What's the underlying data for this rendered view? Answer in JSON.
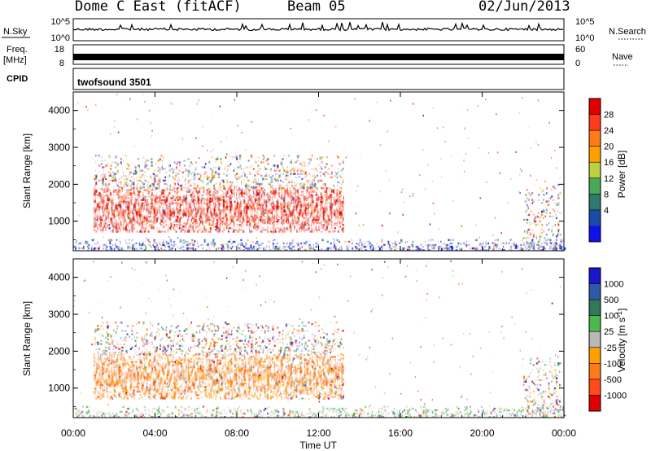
{
  "header": {
    "title": "Dome C East (fitACF)",
    "beam": "Beam 05",
    "date": "02/Jun/2013"
  },
  "top_panels": {
    "nsky": {
      "label": "N.Sky",
      "left_ticks": [
        "10^5",
        "10^0"
      ],
      "right_label": "N.Search",
      "right_ticks": [
        "10^5",
        "10^0"
      ]
    },
    "freq": {
      "label_line1": "Freq.",
      "label_line2": "[MHz]",
      "left_ticks": [
        "18",
        "8"
      ],
      "right_label": "Nave",
      "right_ticks": [
        "60",
        "0"
      ]
    },
    "cpid": {
      "label": "CPID",
      "program": "twofsound 3501"
    }
  },
  "time_axis": {
    "ticks": [
      "00:00",
      "04:00",
      "08:00",
      "12:00",
      "16:00",
      "20:00",
      "00:00"
    ],
    "label": "Time UT"
  },
  "chart_data": [
    {
      "type": "heatmap",
      "name": "power",
      "ylabel": "Slant Range [km]",
      "ylim": [
        200,
        4500
      ],
      "yticks": [
        1000,
        2000,
        3000,
        4000
      ],
      "xlim_hours": [
        0,
        24
      ],
      "colorbar": {
        "label": "Power [dB]",
        "ticks": [
          "28",
          "24",
          "20",
          "16",
          "12",
          "8",
          "4"
        ],
        "colors": [
          "#e00000",
          "#ff3a1a",
          "#ff7a1a",
          "#ffa000",
          "#bcd040",
          "#4aa85a",
          "#2e7a70",
          "#1c4aa8",
          "#1010e8"
        ]
      },
      "regions": [
        {
          "t0": 1.0,
          "t1": 13.2,
          "r0": 700,
          "r1": 1900,
          "level": "high"
        },
        {
          "t0": 1.0,
          "t1": 13.2,
          "r0": 1900,
          "r1": 2800,
          "level": "mixed"
        },
        {
          "t0": 22.0,
          "t1": 23.8,
          "r0": 300,
          "r1": 2000,
          "level": "mixed"
        },
        {
          "t0": 0.0,
          "t1": 24.0,
          "r0": 200,
          "r1": 500,
          "level": "low"
        }
      ]
    },
    {
      "type": "heatmap",
      "name": "velocity",
      "ylabel": "Slant Range [km]",
      "ylim": [
        200,
        4500
      ],
      "yticks": [
        1000,
        2000,
        3000,
        4000
      ],
      "xlim_hours": [
        0,
        24
      ],
      "colorbar": {
        "label": "Velocity [m s^-1]",
        "ticks": [
          "1000",
          "500",
          "100",
          "25",
          "-25",
          "-100",
          "-500",
          "-1000"
        ],
        "colors": [
          "#1818c8",
          "#2e5aa8",
          "#2f7a5a",
          "#4ab84a",
          "#b8b8b8",
          "#ffa000",
          "#ff7a1a",
          "#ff4a1a",
          "#e00000"
        ]
      },
      "regions": [
        {
          "t0": 1.0,
          "t1": 13.2,
          "r0": 700,
          "r1": 1900,
          "level": "negative"
        },
        {
          "t0": 1.0,
          "t1": 13.2,
          "r0": 1900,
          "r1": 2800,
          "level": "mixed"
        },
        {
          "t0": 22.0,
          "t1": 23.8,
          "r0": 300,
          "r1": 1900,
          "level": "mixed"
        },
        {
          "t0": 0.0,
          "t1": 24.0,
          "r0": 200,
          "r1": 500,
          "level": "low"
        }
      ]
    }
  ]
}
